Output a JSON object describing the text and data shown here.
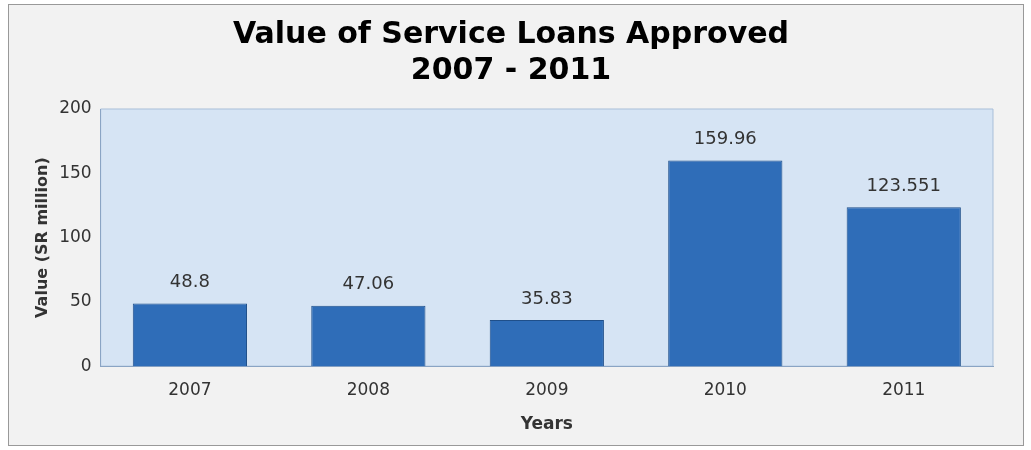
{
  "chart_data": {
    "type": "bar",
    "title": "Value of Service Loans Approved\n2007 - 2011",
    "xlabel": "Years",
    "ylabel": "Value (SR million)",
    "categories": [
      "2007",
      "2008",
      "2009",
      "2010",
      "2011"
    ],
    "values": [
      48.8,
      47.06,
      35.83,
      159.96,
      123.551
    ],
    "value_labels": [
      "48.8",
      "47.06",
      "35.83",
      "159.96",
      "123.551"
    ],
    "color": "#2f6db8",
    "ylim": [
      0,
      200
    ],
    "yticks": [
      0,
      50,
      100,
      150,
      200
    ],
    "grid": false,
    "legend": false
  }
}
